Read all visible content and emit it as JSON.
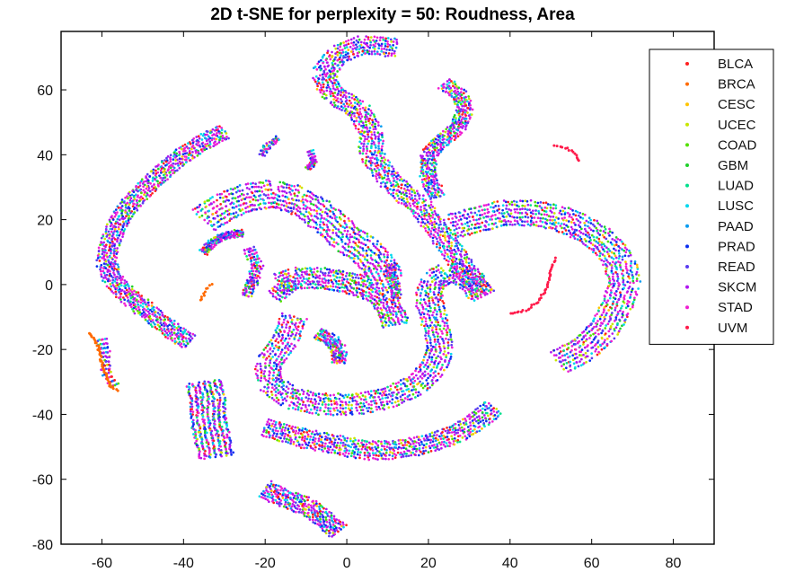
{
  "chart_data": {
    "type": "scatter",
    "title": "2D t-SNE for perplexity = 50: Roudness, Area",
    "xlabel": "",
    "ylabel": "",
    "xlim": [
      -70,
      90
    ],
    "ylim": [
      -80,
      78
    ],
    "xticks": [
      -60,
      -40,
      -20,
      0,
      20,
      40,
      60,
      80
    ],
    "yticks": [
      -80,
      -60,
      -40,
      -20,
      0,
      20,
      40,
      60
    ],
    "grid": false,
    "legend_position": "top-right",
    "series": [
      {
        "name": "BLCA",
        "color": "#ff1f1f"
      },
      {
        "name": "BRCA",
        "color": "#ff6a00"
      },
      {
        "name": "CESC",
        "color": "#ffc400"
      },
      {
        "name": "UCEC",
        "color": "#c8e600"
      },
      {
        "name": "COAD",
        "color": "#52e000"
      },
      {
        "name": "GBM",
        "color": "#1fd02a"
      },
      {
        "name": "LUAD",
        "color": "#00e08c"
      },
      {
        "name": "LUSC",
        "color": "#00d8ee"
      },
      {
        "name": "PAAD",
        "color": "#0a9cf0"
      },
      {
        "name": "PRAD",
        "color": "#0a2ef0"
      },
      {
        "name": "READ",
        "color": "#5a3cf0"
      },
      {
        "name": "SKCM",
        "color": "#b016f0"
      },
      {
        "name": "STAD",
        "color": "#f01ed2"
      },
      {
        "name": "UVM",
        "color": "#ff1a4a"
      }
    ],
    "clusters": [
      {
        "kind": "band",
        "path": [
          [
            12,
            73
          ],
          [
            4,
            74
          ],
          [
            -2,
            71
          ],
          [
            -6,
            65
          ],
          [
            -3,
            58
          ],
          [
            3,
            54
          ],
          [
            6,
            47
          ],
          [
            6,
            40
          ],
          [
            10,
            33
          ],
          [
            14,
            28
          ],
          [
            18,
            24
          ],
          [
            21,
            19
          ],
          [
            25,
            12
          ],
          [
            28,
            6
          ],
          [
            31,
            1
          ],
          [
            34,
            -4
          ]
        ],
        "amp": 2.6,
        "n": 150
      },
      {
        "kind": "band",
        "path": [
          [
            -30,
            47
          ],
          [
            -35,
            44
          ],
          [
            -40,
            40
          ],
          [
            -44,
            36
          ],
          [
            -49,
            30
          ],
          [
            -53,
            25
          ],
          [
            -56,
            19
          ],
          [
            -58,
            13
          ],
          [
            -59,
            7
          ],
          [
            -57,
            1
          ],
          [
            -53,
            -4
          ],
          [
            -48,
            -9
          ],
          [
            -44,
            -13
          ],
          [
            -41,
            -16
          ],
          [
            -38,
            -18
          ]
        ],
        "amp": 2.2,
        "n": 130
      },
      {
        "kind": "band",
        "path": [
          [
            24,
            62
          ],
          [
            28,
            58
          ],
          [
            29,
            53
          ],
          [
            27,
            48
          ],
          [
            23,
            44
          ],
          [
            20,
            40
          ],
          [
            20,
            33
          ],
          [
            22,
            27
          ]
        ],
        "amp": 1.8,
        "n": 60
      },
      {
        "kind": "band",
        "path": [
          [
            -35,
            10
          ],
          [
            -33,
            13
          ],
          [
            -30,
            15
          ],
          [
            -25,
            16
          ]
        ],
        "amp": 1.0,
        "n": 20
      },
      {
        "kind": "band",
        "path": [
          [
            -24,
            11
          ],
          [
            -22,
            6
          ],
          [
            -23,
            1
          ],
          [
            -25,
            -4
          ]
        ],
        "amp": 1.2,
        "n": 18
      },
      {
        "kind": "band",
        "path": [
          [
            -17,
            45
          ],
          [
            -20,
            42
          ],
          [
            -21,
            39
          ]
        ],
        "amp": 0.7,
        "n": 8
      },
      {
        "kind": "band",
        "path": [
          [
            -9,
            41
          ],
          [
            -8,
            38
          ],
          [
            -10,
            35
          ]
        ],
        "amp": 0.6,
        "n": 8
      },
      {
        "kind": "band",
        "path": [
          [
            -35,
            20
          ],
          [
            -30,
            24
          ],
          [
            -24,
            27
          ],
          [
            -18,
            28
          ],
          [
            -12,
            26
          ],
          [
            -7,
            22
          ],
          [
            -3,
            18
          ],
          [
            0,
            14
          ],
          [
            4,
            11
          ],
          [
            8,
            6
          ],
          [
            10,
            1
          ]
        ],
        "amp": 4.0,
        "n": 100
      },
      {
        "kind": "band",
        "path": [
          [
            -14,
            -3
          ],
          [
            -17,
            0
          ],
          [
            -13,
            2
          ],
          [
            -7,
            2
          ],
          [
            -1,
            1
          ],
          [
            5,
            -1
          ],
          [
            9,
            -4
          ],
          [
            11,
            -9
          ],
          [
            12,
            -13
          ]
        ],
        "amp": 3.0,
        "n": 70
      },
      {
        "kind": "band",
        "path": [
          [
            -7,
            -15
          ],
          [
            -4,
            -17
          ],
          [
            -2,
            -20
          ],
          [
            -2,
            -24
          ]
        ],
        "amp": 1.6,
        "n": 20
      },
      {
        "kind": "band",
        "path": [
          [
            12,
            -4
          ],
          [
            12,
            -1
          ],
          [
            11,
            2
          ],
          [
            11,
            6
          ]
        ],
        "amp": 1.0,
        "n": 14
      },
      {
        "kind": "band",
        "path": [
          [
            -13,
            -10
          ],
          [
            -15,
            -17
          ],
          [
            -19,
            -24
          ],
          [
            -19,
            -30
          ],
          [
            -14,
            -35
          ],
          [
            -6,
            -37
          ],
          [
            2,
            -37
          ],
          [
            10,
            -35
          ],
          [
            17,
            -31
          ],
          [
            21,
            -26
          ],
          [
            23,
            -20
          ],
          [
            22,
            -14
          ],
          [
            21,
            -9
          ],
          [
            20,
            -4
          ],
          [
            21,
            1
          ],
          [
            25,
            4
          ],
          [
            30,
            2
          ],
          [
            33,
            -3
          ]
        ],
        "amp": 3.0,
        "n": 150
      },
      {
        "kind": "band",
        "path": [
          [
            52,
            -24
          ],
          [
            58,
            -20
          ],
          [
            63,
            -14
          ],
          [
            66,
            -7
          ],
          [
            68,
            0
          ],
          [
            67,
            7
          ],
          [
            63,
            13
          ],
          [
            57,
            18
          ],
          [
            51,
            21
          ],
          [
            45,
            22
          ],
          [
            38,
            22
          ],
          [
            32,
            20
          ],
          [
            26,
            18
          ]
        ],
        "amp": 3.6,
        "n": 130
      },
      {
        "kind": "band",
        "path": [
          [
            -20,
            -44
          ],
          [
            -12,
            -47
          ],
          [
            -4,
            -49
          ],
          [
            4,
            -51
          ],
          [
            12,
            -51
          ],
          [
            20,
            -49
          ],
          [
            27,
            -46
          ],
          [
            32,
            -42
          ],
          [
            36,
            -38
          ]
        ],
        "amp": 2.6,
        "n": 90
      },
      {
        "kind": "band",
        "path": [
          [
            -35,
            -30
          ],
          [
            -34,
            -35
          ],
          [
            -34,
            -41
          ],
          [
            -33,
            -47
          ],
          [
            -32,
            -53
          ]
        ],
        "amp": 4.0,
        "n": 60
      },
      {
        "kind": "band",
        "path": [
          [
            -20,
            -63
          ],
          [
            -15,
            -66
          ],
          [
            -10,
            -68
          ],
          [
            -6,
            -72
          ],
          [
            -2,
            -76
          ]
        ],
        "amp": 2.4,
        "n": 40
      },
      {
        "kind": "band",
        "path": [
          [
            -60,
            -17
          ],
          [
            -59,
            -22
          ],
          [
            -59,
            -27
          ],
          [
            -57,
            -31
          ]
        ],
        "amp": 1.0,
        "n": 12
      },
      {
        "kind": "curve",
        "path": [
          [
            -63,
            -15
          ],
          [
            -61,
            -19
          ],
          [
            -60,
            -24
          ],
          [
            -59,
            -28
          ],
          [
            -58,
            -31
          ],
          [
            -56,
            -33
          ]
        ],
        "color": "#ff6a00",
        "n": 45
      },
      {
        "kind": "curve",
        "path": [
          [
            -36,
            -5
          ],
          [
            -35,
            -3
          ],
          [
            -34,
            -1
          ],
          [
            -33,
            0
          ]
        ],
        "color": "#ff6a00",
        "n": 10
      },
      {
        "kind": "curve",
        "path": [
          [
            40,
            -9
          ],
          [
            44,
            -8
          ],
          [
            47,
            -5
          ],
          [
            49,
            -1
          ],
          [
            50,
            4
          ],
          [
            51,
            8
          ]
        ],
        "color": "#ff1a4a",
        "n": 40
      },
      {
        "kind": "curve",
        "path": [
          [
            51,
            43
          ],
          [
            54,
            42
          ],
          [
            56,
            40
          ],
          [
            57,
            38
          ]
        ],
        "color": "#ff1a4a",
        "n": 14
      },
      {
        "kind": "curve",
        "path": [
          [
            -9,
            41
          ],
          [
            -8,
            38
          ],
          [
            -10,
            35
          ]
        ],
        "color": "#b016f0",
        "n": 8
      }
    ]
  }
}
